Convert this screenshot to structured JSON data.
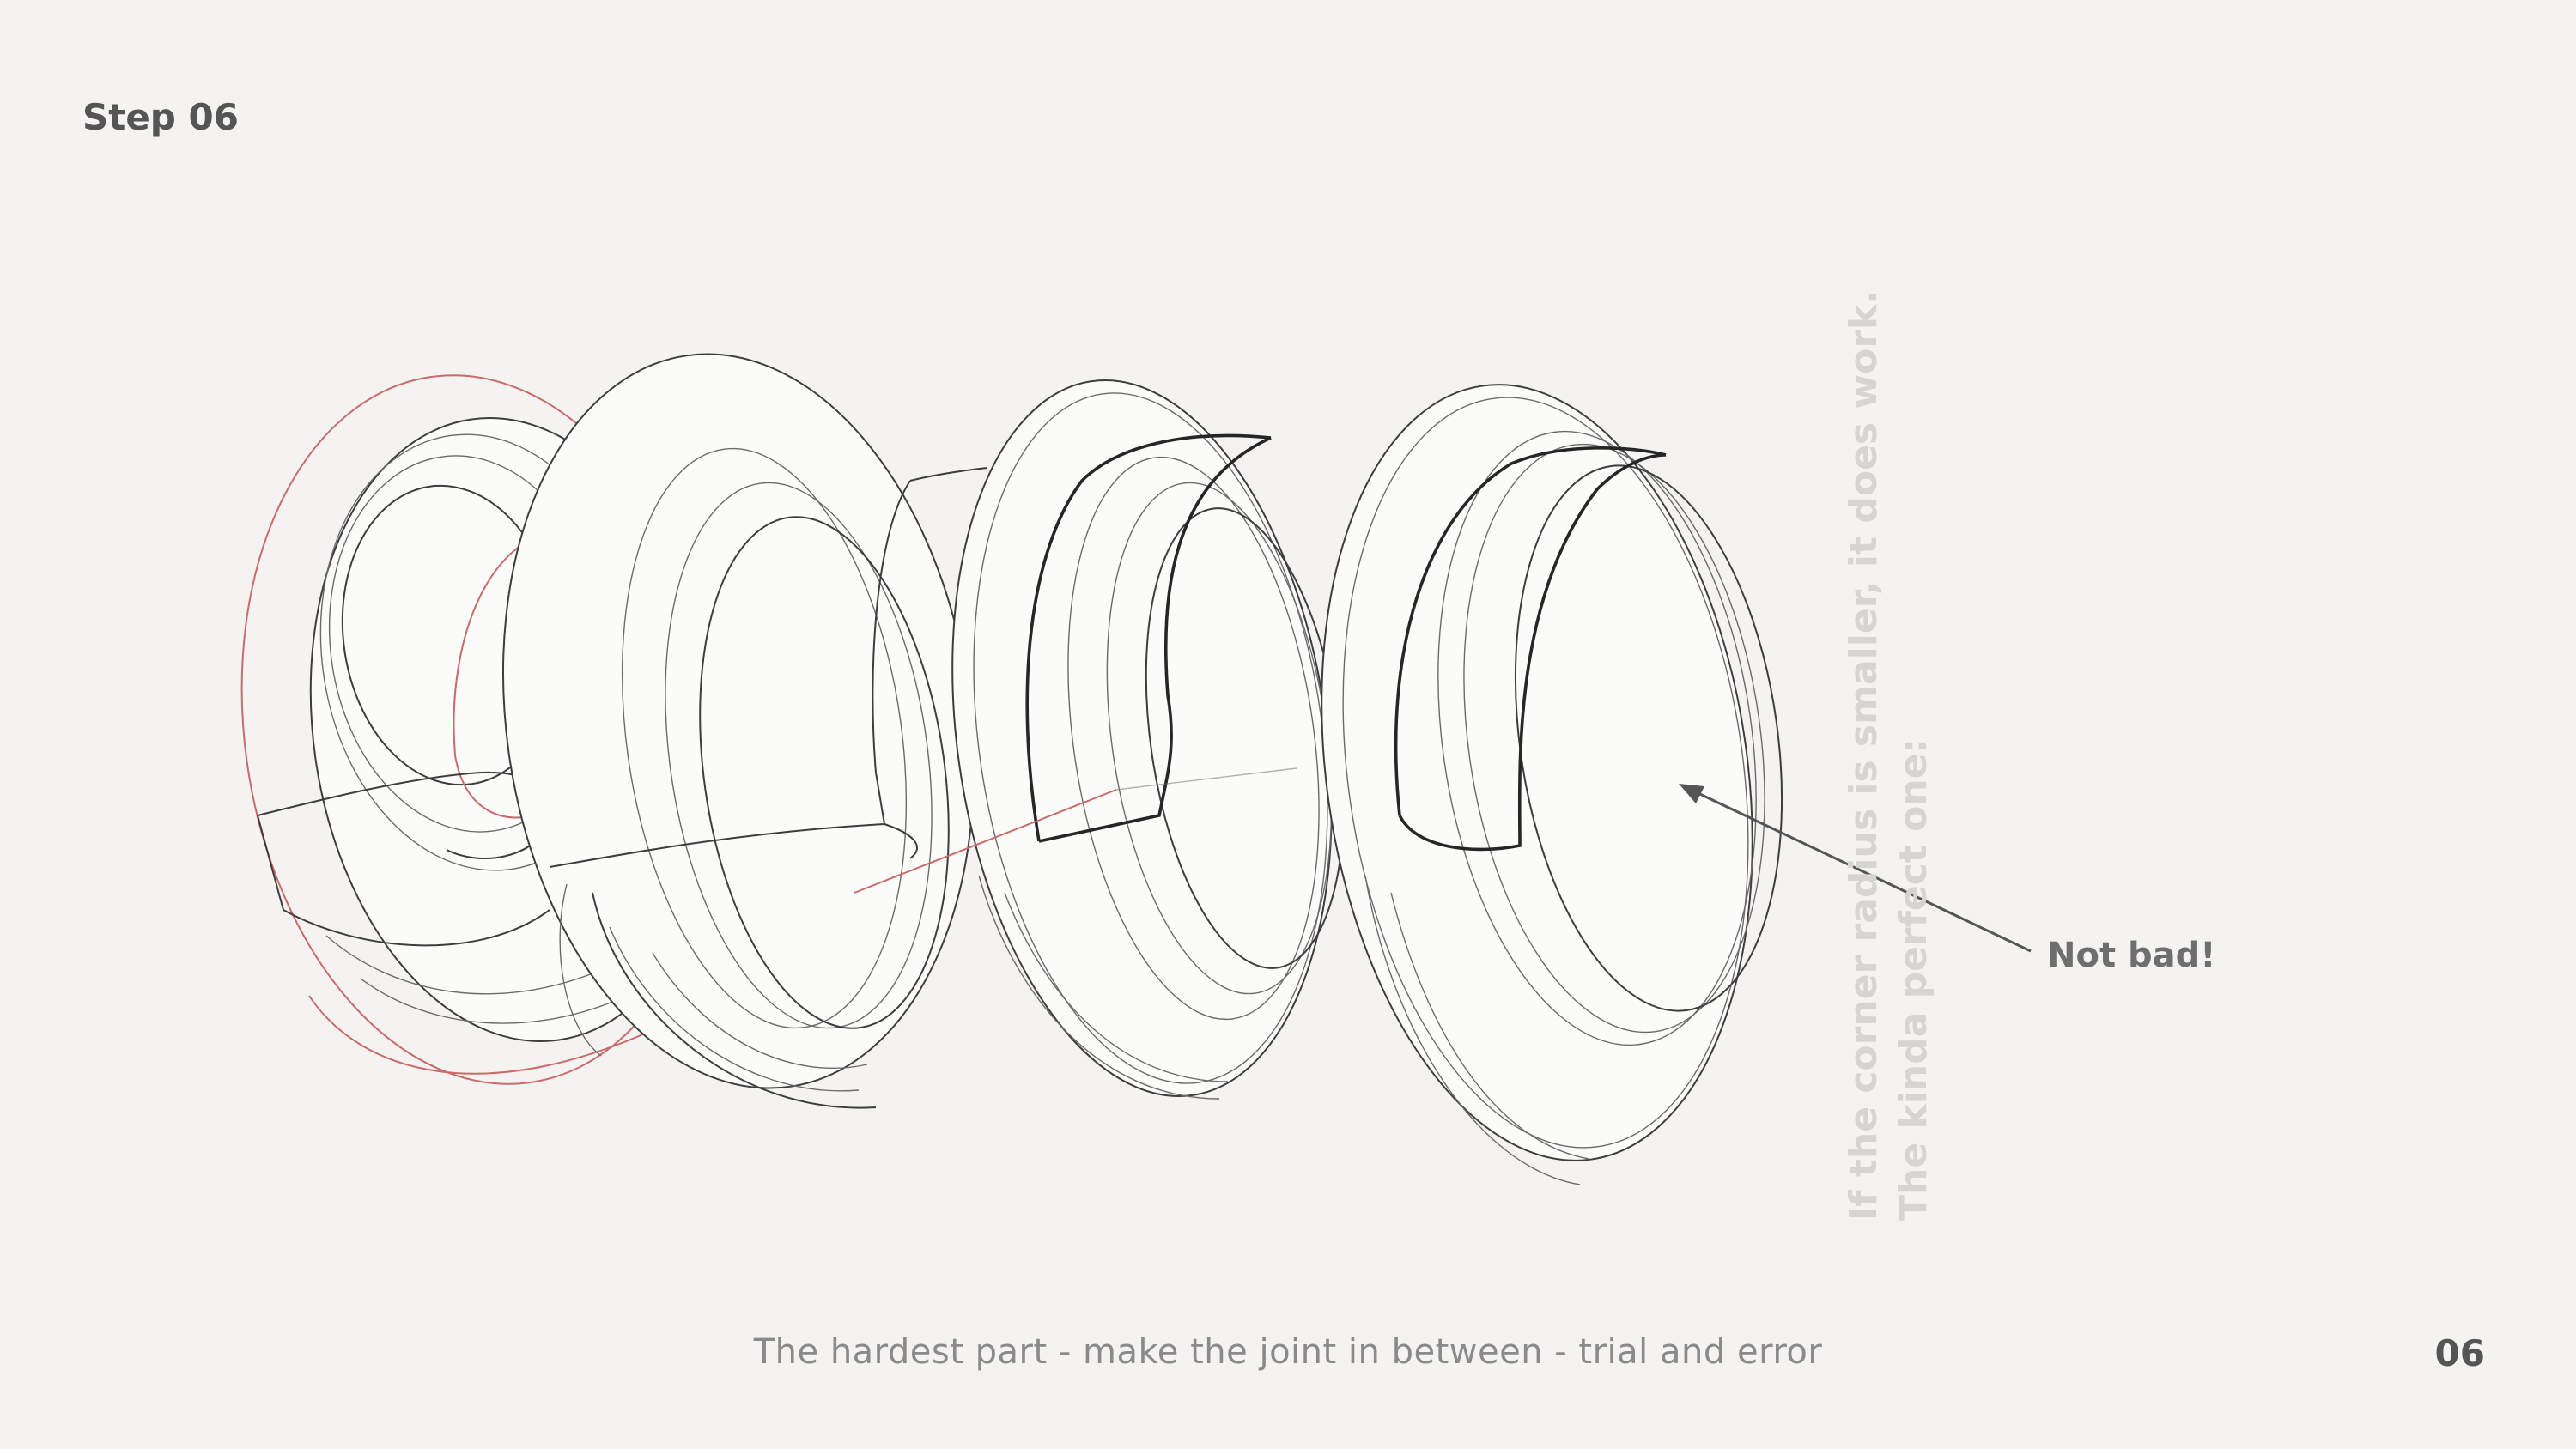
{
  "header": {
    "step_label": "Step 06"
  },
  "note": {
    "line1": "If the corner radius is smaller, it does work.",
    "line2": "The kinda perfect one:"
  },
  "callout": {
    "label": "Not bad!"
  },
  "footer": {
    "caption": "The hardest part - make the joint in between - trial and error",
    "page_number": "06"
  },
  "colors": {
    "background": "#f4f3f1",
    "line": "#3d3d3d",
    "accent_red": "#c96b6b",
    "faded_text": "#d6d5d3"
  }
}
